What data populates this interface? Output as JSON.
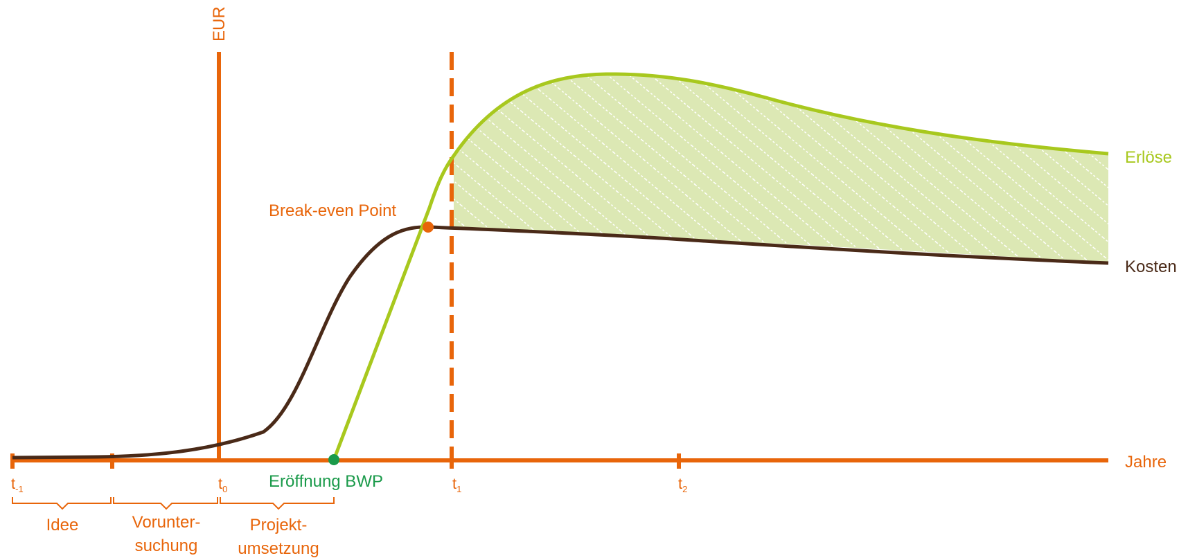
{
  "colors": {
    "axis": "#E8650A",
    "revenue": "#A8C81E",
    "cost": "#4A2A18",
    "profit_fill": "#DCE8B4",
    "opening_point": "#1A9A4A",
    "break_even_point": "#E8650A"
  },
  "axes": {
    "y_label": "EUR",
    "x_label": "Jahre"
  },
  "ticks": [
    {
      "base": "t",
      "sub": "-1"
    },
    {
      "base": "t",
      "sub": "0"
    },
    {
      "base": "t",
      "sub": "1"
    },
    {
      "base": "t",
      "sub": "2"
    }
  ],
  "phases": [
    {
      "line1": "Idee",
      "line2": ""
    },
    {
      "line1": "Vorunter-",
      "line2": "suchung"
    },
    {
      "line1": "Projekt-",
      "line2": "umsetzung"
    }
  ],
  "labels": {
    "break_even": "Break-even Point",
    "opening": "Eröffnung BWP",
    "revenue": "Erlöse",
    "cost": "Kosten"
  }
}
